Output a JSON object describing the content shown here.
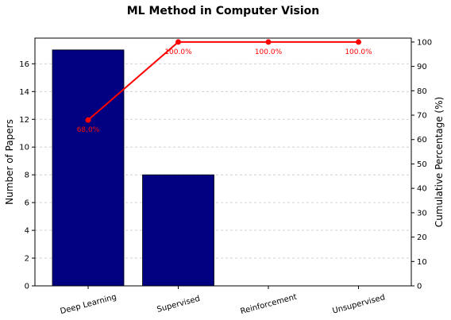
{
  "chart_data": {
    "type": "bar",
    "title": "ML Method in Computer Vision",
    "categories": [
      "Deep Learning",
      "Supervised",
      "Reinforcement",
      "Unsupervised"
    ],
    "series": [
      {
        "values": [
          17,
          8,
          0,
          0
        ],
        "axis": "left",
        "kind": "bar",
        "color": "#000080"
      },
      {
        "values": [
          68.0,
          100.0,
          100.0,
          100.0
        ],
        "axis": "right",
        "kind": "line",
        "color": "#ff0000"
      }
    ],
    "data_labels": [
      "68.0%",
      "100.0%",
      "100.0%",
      "100.0%"
    ],
    "ylabel": "Number of Papers",
    "ylim": [
      0,
      17.85
    ],
    "yticks": [
      "0",
      "2",
      "4",
      "6",
      "8",
      "10",
      "12",
      "14",
      "16"
    ],
    "y2label": "Cumulative Percentage (%)",
    "y2lim": [
      0,
      101.6
    ],
    "y2ticks": [
      "0",
      "10",
      "20",
      "30",
      "40",
      "50",
      "60",
      "70",
      "80",
      "90",
      "100"
    ],
    "grid": "y-dashed",
    "colors": {
      "bar": "#000080",
      "line": "#ff0000",
      "grid": "#c8c8c8"
    }
  }
}
